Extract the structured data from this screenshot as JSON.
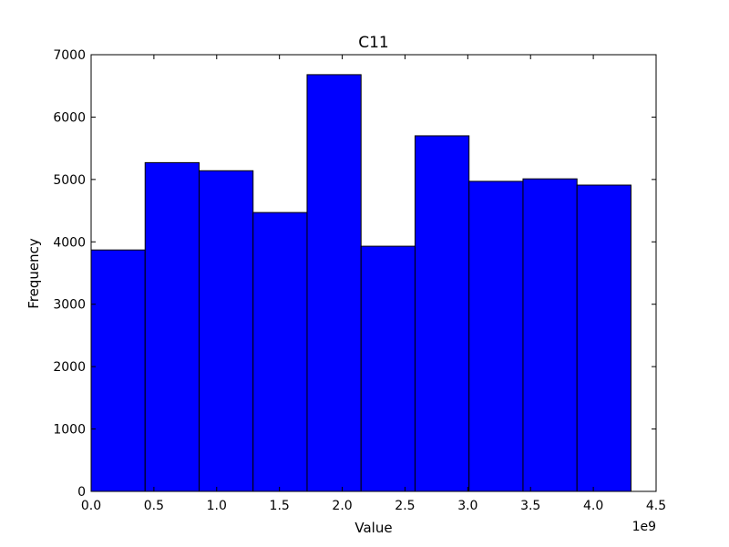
{
  "chart_data": {
    "type": "bar",
    "title": "C11",
    "xlabel": "Value",
    "ylabel": "Frequency",
    "x_offset_label": "1e9",
    "xlim": [
      0.0,
      4.5
    ],
    "ylim": [
      0,
      7000
    ],
    "x_ticks": [
      "0.0",
      "0.5",
      "1.0",
      "1.5",
      "2.0",
      "2.5",
      "3.0",
      "3.5",
      "4.0",
      "4.5"
    ],
    "y_ticks": [
      "0",
      "1000",
      "2000",
      "3000",
      "4000",
      "5000",
      "6000",
      "7000"
    ],
    "bins": [
      {
        "start": 0.0,
        "end": 0.43,
        "count": 3870
      },
      {
        "start": 0.43,
        "end": 0.86,
        "count": 5270
      },
      {
        "start": 0.86,
        "end": 1.29,
        "count": 5140
      },
      {
        "start": 1.29,
        "end": 1.72,
        "count": 4470
      },
      {
        "start": 1.72,
        "end": 2.15,
        "count": 6680
      },
      {
        "start": 2.15,
        "end": 2.58,
        "count": 3930
      },
      {
        "start": 2.58,
        "end": 3.01,
        "count": 5700
      },
      {
        "start": 3.01,
        "end": 3.44,
        "count": 4970
      },
      {
        "start": 3.44,
        "end": 3.87,
        "count": 5010
      },
      {
        "start": 3.87,
        "end": 4.3,
        "count": 4910
      }
    ],
    "bar_color": "#0000ff",
    "edge_color": "#000000",
    "grid": false,
    "legend": "none"
  }
}
